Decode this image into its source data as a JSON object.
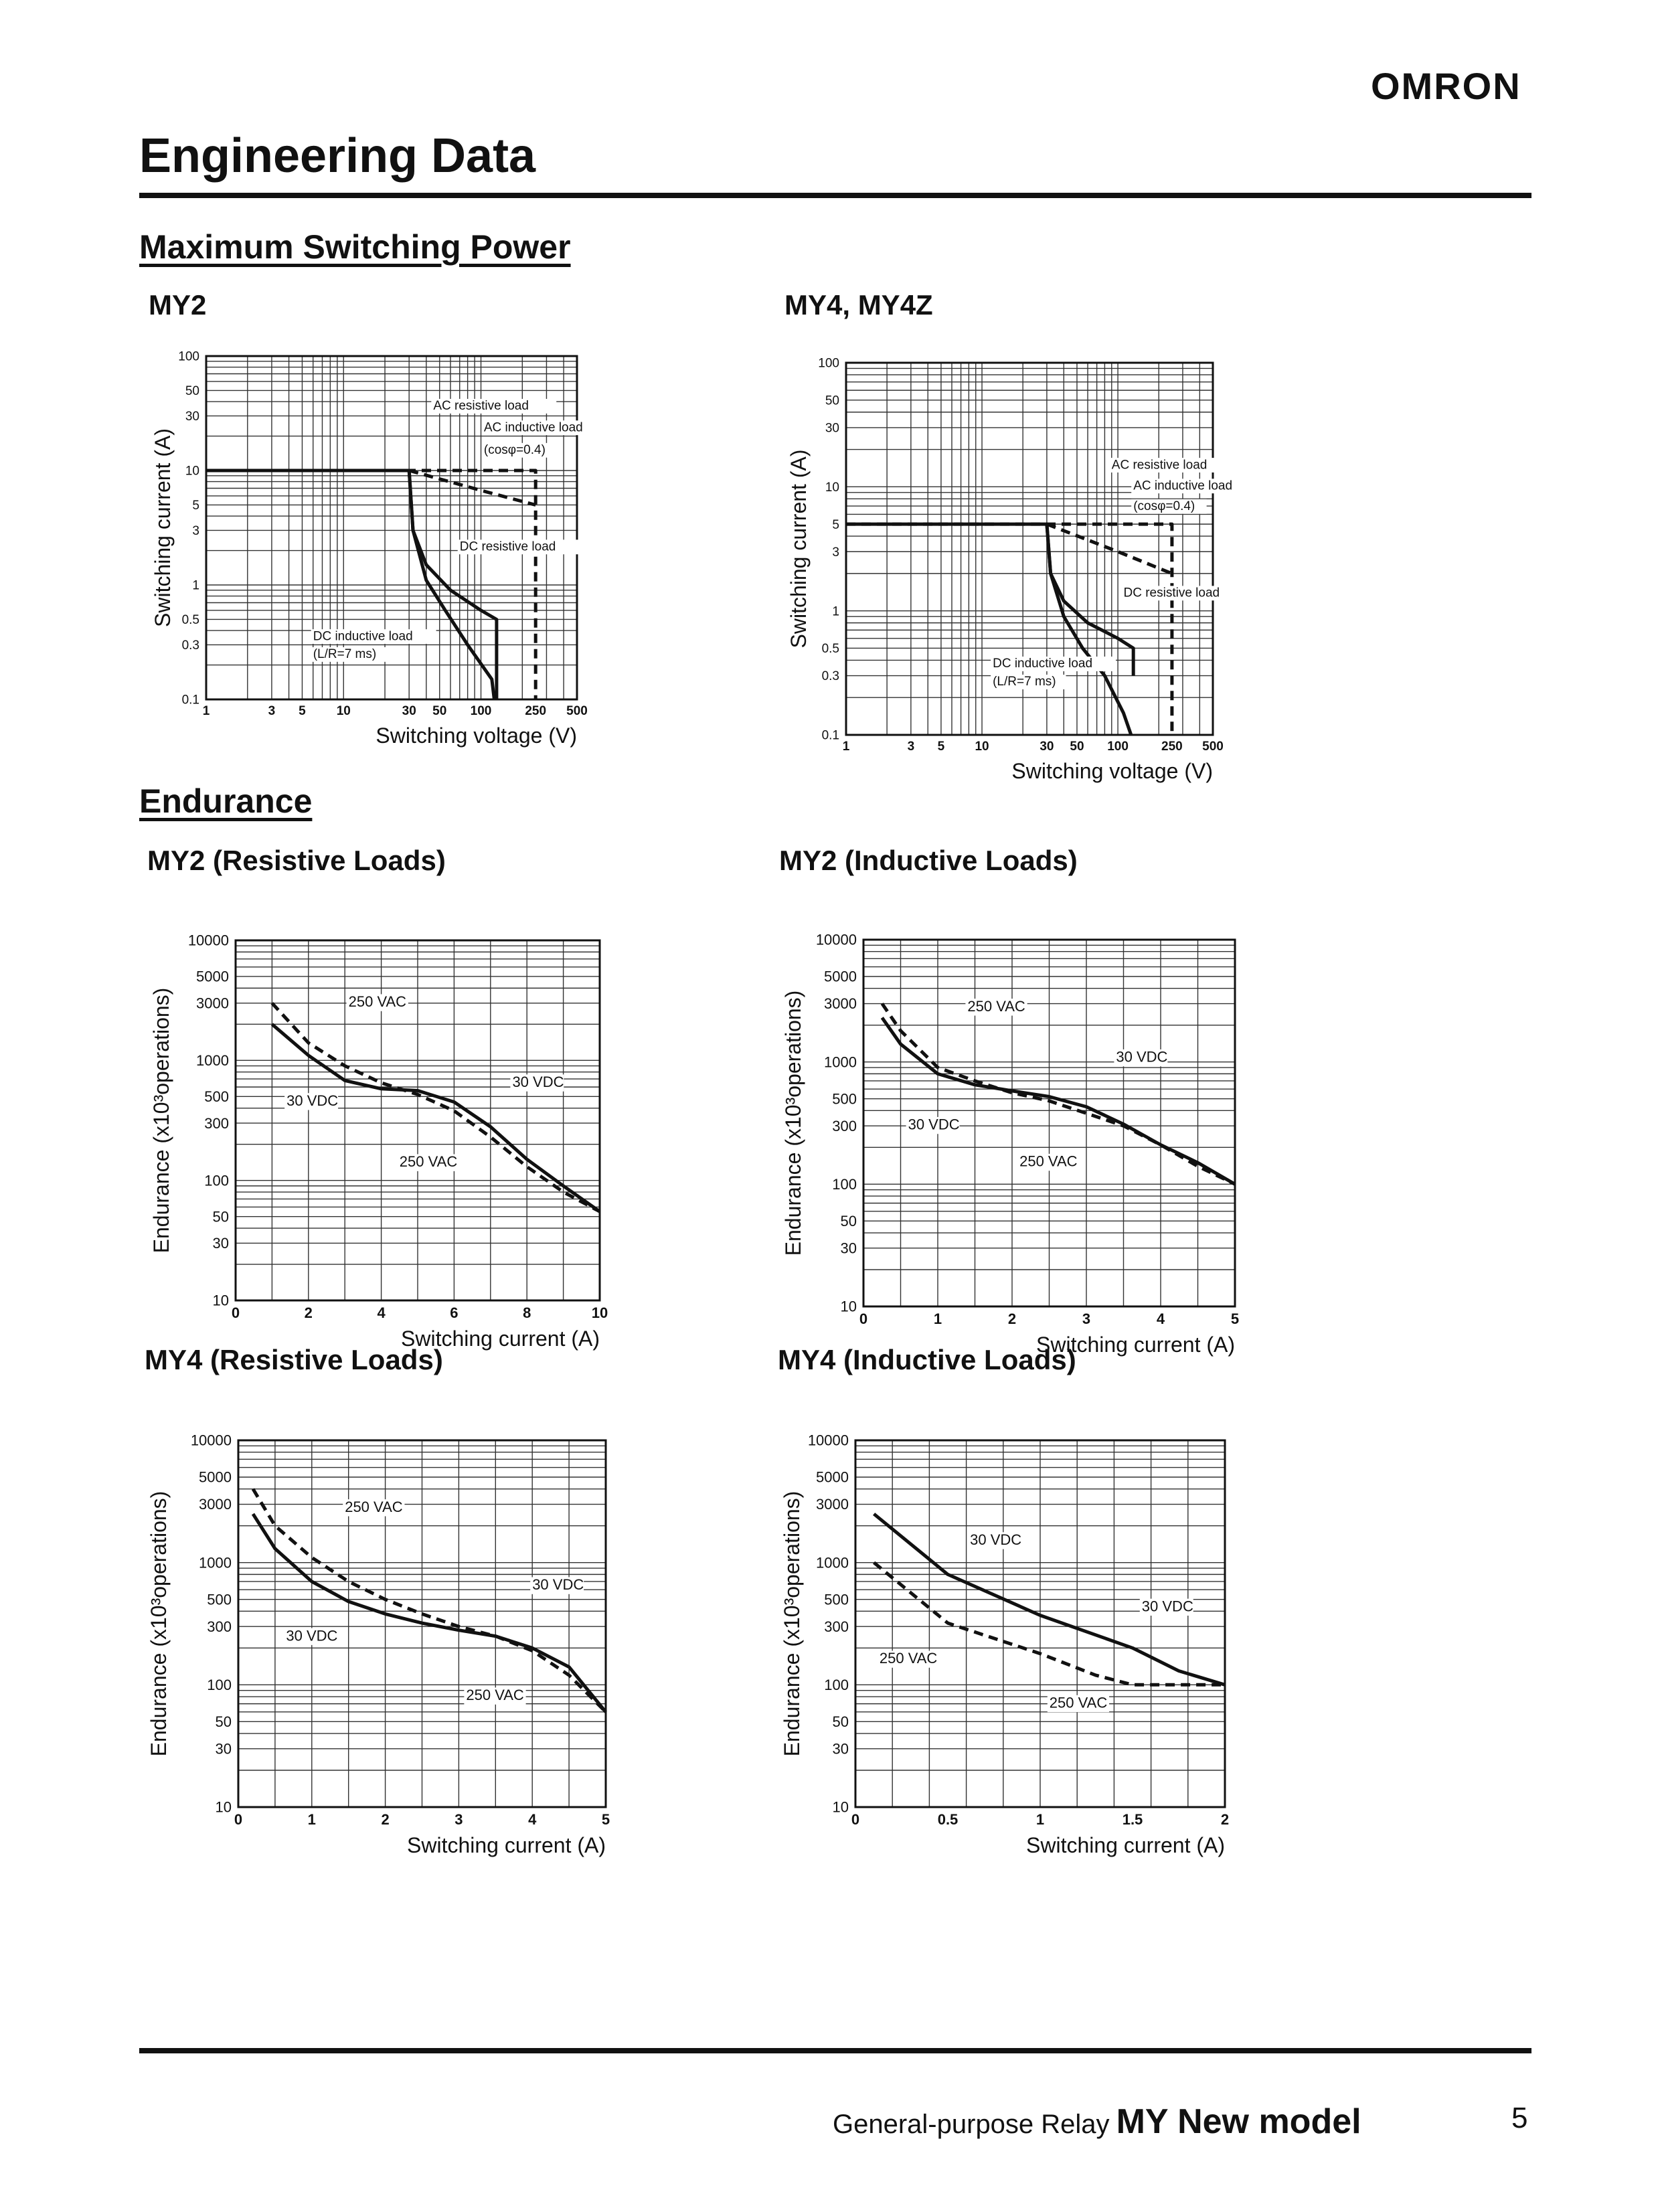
{
  "header": {
    "logo": "OMRON",
    "title": "Engineering Data"
  },
  "sections": {
    "power": "Maximum Switching Power",
    "endurance": "Endurance"
  },
  "footer": {
    "text": "General-purpose Relay",
    "model": "MY New model",
    "page": "5"
  },
  "chart_data": [
    {
      "id": "my2-power",
      "type": "line",
      "title": "MY2",
      "xlabel": "Switching voltage (V)",
      "ylabel": "Switching current (A)",
      "xscale": "log",
      "yscale": "log",
      "xlim": [
        1,
        500
      ],
      "ylim": [
        0.1,
        100
      ],
      "xticks": [
        1,
        3,
        5,
        10,
        30,
        50,
        100,
        250,
        500
      ],
      "xtick_labels": [
        "1",
        "3",
        "5",
        "10",
        "30",
        "50",
        "100",
        "250",
        "500"
      ],
      "yticks": [
        0.1,
        0.3,
        0.5,
        1,
        3,
        5,
        10,
        30,
        50,
        100
      ],
      "ytick_labels": [
        "0.1",
        "0.3",
        "0.5",
        "1",
        "3",
        "5",
        "10",
        "30",
        "50",
        "100"
      ],
      "series": [
        {
          "name": "AC resistive load",
          "style": "dashed",
          "points": [
            [
              1,
              10
            ],
            [
              250,
              10
            ],
            [
              250,
              0.1
            ]
          ]
        },
        {
          "name": "AC inductive load (cosφ=0.4)",
          "style": "dashed",
          "points": [
            [
              30,
              10
            ],
            [
              110,
              6.5
            ],
            [
              250,
              5
            ]
          ]
        },
        {
          "name": "DC resistive load",
          "style": "solid",
          "points": [
            [
              1,
              10
            ],
            [
              30,
              10
            ],
            [
              32,
              3
            ],
            [
              40,
              1.5
            ],
            [
              60,
              0.9
            ],
            [
              100,
              0.6
            ],
            [
              130,
              0.5
            ],
            [
              130,
              0.1
            ]
          ]
        },
        {
          "name": "DC inductive load (L/R=7 ms)",
          "style": "solid",
          "points": [
            [
              30,
              10
            ],
            [
              32,
              3
            ],
            [
              40,
              1.1
            ],
            [
              55,
              0.6
            ],
            [
              80,
              0.3
            ],
            [
              120,
              0.15
            ],
            [
              125,
              0.1
            ]
          ]
        }
      ],
      "annotations": [
        {
          "text": "AC resistive load",
          "x": 45,
          "y": 34
        },
        {
          "text": "AC inductive load",
          "x": 105,
          "y": 22
        },
        {
          "text": "(cosφ=0.4)",
          "x": 105,
          "y": 14
        },
        {
          "text": "DC resistive load",
          "x": 70,
          "y": 2.0
        },
        {
          "text": "DC inductive load",
          "x": 6,
          "y": 0.33
        },
        {
          "text": "(L/R=7 ms)",
          "x": 6,
          "y": 0.23
        }
      ]
    },
    {
      "id": "my4-power",
      "type": "line",
      "title": "MY4, MY4Z",
      "xlabel": "Switching voltage (V)",
      "ylabel": "Switching current (A)",
      "xscale": "log",
      "yscale": "log",
      "xlim": [
        1,
        500
      ],
      "ylim": [
        0.1,
        100
      ],
      "xticks": [
        1,
        3,
        5,
        10,
        30,
        50,
        100,
        250,
        500
      ],
      "xtick_labels": [
        "1",
        "3",
        "5",
        "10",
        "30",
        "50",
        "100",
        "250",
        "500"
      ],
      "yticks": [
        0.1,
        0.3,
        0.5,
        1,
        3,
        5,
        10,
        30,
        50,
        100
      ],
      "ytick_labels": [
        "0.1",
        "0.3",
        "0.5",
        "1",
        "3",
        "5",
        "10",
        "30",
        "50",
        "100"
      ],
      "series": [
        {
          "name": "AC resistive load",
          "style": "dashed",
          "points": [
            [
              1,
              5
            ],
            [
              250,
              5
            ],
            [
              250,
              0.1
            ]
          ]
        },
        {
          "name": "AC inductive load (cosφ=0.4)",
          "style": "dashed",
          "points": [
            [
              30,
              5
            ],
            [
              100,
              3
            ],
            [
              250,
              2
            ]
          ]
        },
        {
          "name": "DC resistive load",
          "style": "solid",
          "points": [
            [
              1,
              5
            ],
            [
              30,
              5
            ],
            [
              32,
              2
            ],
            [
              40,
              1.2
            ],
            [
              60,
              0.8
            ],
            [
              100,
              0.6
            ],
            [
              130,
              0.5
            ],
            [
              130,
              0.3
            ]
          ]
        },
        {
          "name": "DC inductive load (L/R=7 ms)",
          "style": "solid",
          "points": [
            [
              30,
              5
            ],
            [
              32,
              2
            ],
            [
              40,
              0.9
            ],
            [
              55,
              0.5
            ],
            [
              80,
              0.3
            ],
            [
              110,
              0.15
            ],
            [
              125,
              0.1
            ]
          ]
        }
      ],
      "annotations": [
        {
          "text": "AC resistive load",
          "x": 90,
          "y": 14
        },
        {
          "text": "AC inductive load",
          "x": 130,
          "y": 9.5
        },
        {
          "text": "(cosφ=0.4)",
          "x": 130,
          "y": 6.5
        },
        {
          "text": "DC resistive load",
          "x": 110,
          "y": 1.3
        },
        {
          "text": "DC inductive load",
          "x": 12,
          "y": 0.35
        },
        {
          "text": "(L/R=7 ms)",
          "x": 12,
          "y": 0.25
        }
      ]
    },
    {
      "id": "my2-res",
      "type": "line",
      "title": "MY2 (Resistive Loads)",
      "xlabel": "Switching current (A)",
      "ylabel": "Endurance (x10³operations)",
      "xscale": "linear",
      "yscale": "log",
      "xlim": [
        0,
        10
      ],
      "ylim": [
        10,
        10000
      ],
      "xticks": [
        0,
        2,
        4,
        6,
        8,
        10
      ],
      "xtick_labels": [
        "0",
        "2",
        "4",
        "6",
        "8",
        "10"
      ],
      "yticks": [
        10,
        30,
        50,
        100,
        300,
        500,
        1000,
        3000,
        5000,
        10000
      ],
      "ytick_labels": [
        "10",
        "30",
        "50",
        "100",
        "300",
        "500",
        "1000",
        "3000",
        "5000",
        "10000"
      ],
      "series": [
        {
          "name": "250 VAC",
          "style": "dashed",
          "points": [
            [
              1,
              3000
            ],
            [
              2,
              1400
            ],
            [
              3,
              900
            ],
            [
              4,
              650
            ],
            [
              5,
              520
            ],
            [
              6,
              380
            ],
            [
              7,
              230
            ],
            [
              8,
              130
            ],
            [
              9,
              80
            ],
            [
              10,
              55
            ]
          ]
        },
        {
          "name": "30 VDC",
          "style": "solid",
          "points": [
            [
              1,
              2000
            ],
            [
              2,
              1100
            ],
            [
              3,
              680
            ],
            [
              4,
              580
            ],
            [
              5,
              560
            ],
            [
              6,
              450
            ],
            [
              7,
              280
            ],
            [
              8,
              150
            ],
            [
              9,
              90
            ],
            [
              10,
              55
            ]
          ]
        }
      ],
      "annotations": [
        {
          "text": "250 VAC",
          "x": 3.1,
          "y": 2800
        },
        {
          "text": "30 VDC",
          "x": 1.4,
          "y": 420
        },
        {
          "text": "30 VDC",
          "x": 7.6,
          "y": 600
        },
        {
          "text": "250 VAC",
          "x": 4.5,
          "y": 130
        }
      ]
    },
    {
      "id": "my2-ind",
      "type": "line",
      "title": "MY2 (Inductive Loads)",
      "xlabel": "Switching current (A)",
      "ylabel": "Endurance (x10³operations)",
      "xscale": "linear",
      "yscale": "log",
      "xlim": [
        0,
        5
      ],
      "ylim": [
        10,
        10000
      ],
      "xticks": [
        0,
        1,
        2,
        3,
        4,
        5
      ],
      "xtick_labels": [
        "0",
        "1",
        "2",
        "3",
        "4",
        "5"
      ],
      "yticks": [
        10,
        30,
        50,
        100,
        300,
        500,
        1000,
        3000,
        5000,
        10000
      ],
      "ytick_labels": [
        "10",
        "30",
        "50",
        "100",
        "300",
        "500",
        "1000",
        "3000",
        "5000",
        "10000"
      ],
      "series": [
        {
          "name": "250 VAC",
          "style": "dashed",
          "points": [
            [
              0.25,
              3000
            ],
            [
              0.5,
              1800
            ],
            [
              1,
              900
            ],
            [
              1.5,
              700
            ],
            [
              2,
              560
            ],
            [
              2.5,
              480
            ],
            [
              3,
              380
            ],
            [
              3.5,
              300
            ],
            [
              4,
              210
            ],
            [
              4.5,
              140
            ],
            [
              5,
              100
            ]
          ]
        },
        {
          "name": "30 VDC",
          "style": "solid",
          "points": [
            [
              0.25,
              2300
            ],
            [
              0.5,
              1400
            ],
            [
              1,
              800
            ],
            [
              1.5,
              650
            ],
            [
              2,
              580
            ],
            [
              2.5,
              520
            ],
            [
              3,
              430
            ],
            [
              3.5,
              310
            ],
            [
              4,
              210
            ],
            [
              4.5,
              150
            ],
            [
              5,
              100
            ]
          ]
        }
      ],
      "annotations": [
        {
          "text": "250 VAC",
          "x": 1.4,
          "y": 2600
        },
        {
          "text": "30 VDC",
          "x": 3.4,
          "y": 1000
        },
        {
          "text": "30 VDC",
          "x": 0.6,
          "y": 280
        },
        {
          "text": "250 VAC",
          "x": 2.1,
          "y": 140
        }
      ]
    },
    {
      "id": "my4-res",
      "type": "line",
      "title": "MY4 (Resistive Loads)",
      "xlabel": "Switching current (A)",
      "ylabel": "Endurance (x10³operations)",
      "xscale": "linear",
      "yscale": "log",
      "xlim": [
        0,
        5
      ],
      "ylim": [
        10,
        10000
      ],
      "xticks": [
        0,
        1,
        2,
        3,
        4,
        5
      ],
      "xtick_labels": [
        "0",
        "1",
        "2",
        "3",
        "4",
        "5"
      ],
      "yticks": [
        10,
        30,
        50,
        100,
        300,
        500,
        1000,
        3000,
        5000,
        10000
      ],
      "ytick_labels": [
        "10",
        "30",
        "50",
        "100",
        "300",
        "500",
        "1000",
        "3000",
        "5000",
        "10000"
      ],
      "series": [
        {
          "name": "250 VAC",
          "style": "dashed",
          "points": [
            [
              0.2,
              4000
            ],
            [
              0.5,
              2000
            ],
            [
              1,
              1100
            ],
            [
              1.5,
              700
            ],
            [
              2,
              500
            ],
            [
              2.5,
              380
            ],
            [
              3,
              300
            ],
            [
              3.5,
              250
            ],
            [
              4,
              190
            ],
            [
              4.5,
              120
            ],
            [
              5,
              60
            ]
          ]
        },
        {
          "name": "30 VDC",
          "style": "solid",
          "points": [
            [
              0.2,
              2500
            ],
            [
              0.5,
              1300
            ],
            [
              1,
              700
            ],
            [
              1.5,
              480
            ],
            [
              2,
              380
            ],
            [
              2.5,
              320
            ],
            [
              3,
              280
            ],
            [
              3.5,
              250
            ],
            [
              4,
              200
            ],
            [
              4.5,
              140
            ],
            [
              5,
              60
            ]
          ]
        }
      ],
      "annotations": [
        {
          "text": "250 VAC",
          "x": 1.45,
          "y": 2600
        },
        {
          "text": "30 VDC",
          "x": 4.0,
          "y": 600
        },
        {
          "text": "30 VDC",
          "x": 0.65,
          "y": 230
        },
        {
          "text": "250 VAC",
          "x": 3.1,
          "y": 75
        }
      ]
    },
    {
      "id": "my4-ind",
      "type": "line",
      "title": "MY4 (Inductive Loads)",
      "xlabel": "Switching current (A)",
      "ylabel": "Endurance (x10³operations)",
      "xscale": "linear",
      "yscale": "log",
      "xlim": [
        0,
        2
      ],
      "ylim": [
        10,
        10000
      ],
      "xticks": [
        0,
        0.5,
        1,
        1.5,
        2
      ],
      "xtick_labels": [
        "0",
        "0.5",
        "1",
        "1.5",
        "2"
      ],
      "yticks": [
        10,
        30,
        50,
        100,
        300,
        500,
        1000,
        3000,
        5000,
        10000
      ],
      "ytick_labels": [
        "10",
        "30",
        "50",
        "100",
        "300",
        "500",
        "1000",
        "3000",
        "5000",
        "10000"
      ],
      "series": [
        {
          "name": "30 VDC",
          "style": "solid",
          "points": [
            [
              0.1,
              2500
            ],
            [
              0.5,
              800
            ],
            [
              1,
              370
            ],
            [
              1.5,
              200
            ],
            [
              1.75,
              130
            ],
            [
              2,
              100
            ]
          ]
        },
        {
          "name": "250 VAC",
          "style": "dashed",
          "points": [
            [
              0.1,
              1000
            ],
            [
              0.5,
              320
            ],
            [
              1,
              180
            ],
            [
              1.3,
              120
            ],
            [
              1.5,
              100
            ],
            [
              2,
              100
            ]
          ]
        }
      ],
      "annotations": [
        {
          "text": "30 VDC",
          "x": 0.62,
          "y": 1400
        },
        {
          "text": "30 VDC",
          "x": 1.55,
          "y": 400
        },
        {
          "text": "250 VAC",
          "x": 0.13,
          "y": 150
        },
        {
          "text": "250 VAC",
          "x": 1.05,
          "y": 65
        }
      ]
    }
  ]
}
